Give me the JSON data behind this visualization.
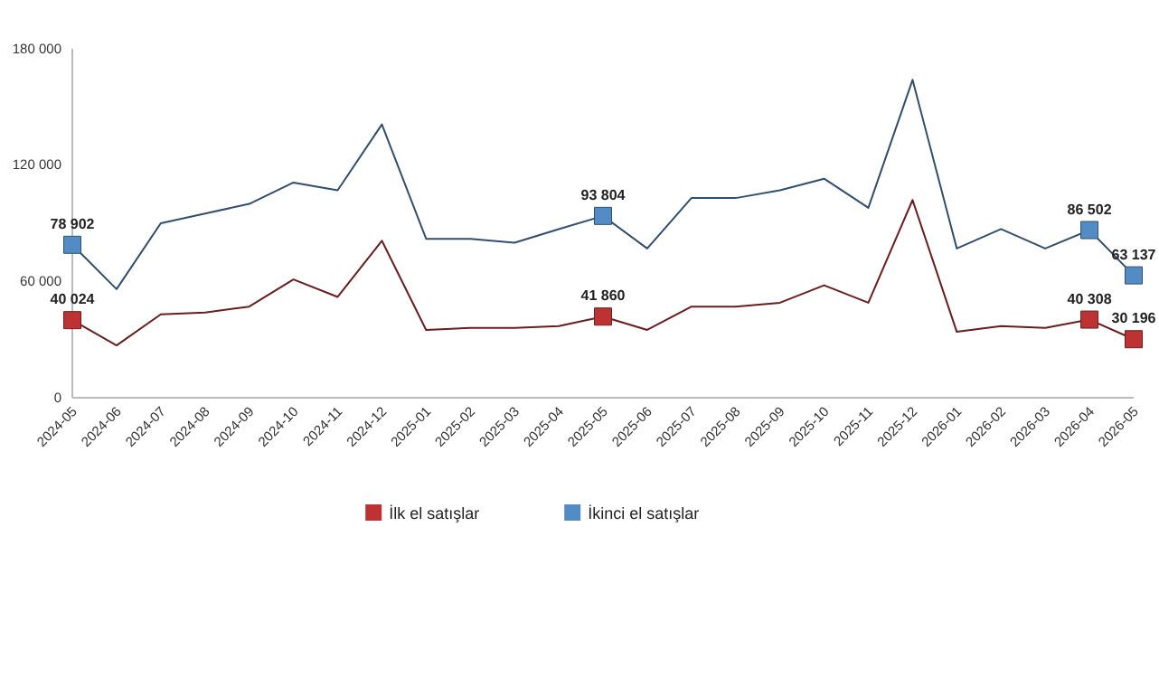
{
  "chart_data": {
    "type": "line",
    "categories": [
      "2024-05",
      "2024-06",
      "2024-07",
      "2024-08",
      "2024-09",
      "2024-10",
      "2024-11",
      "2024-12",
      "2025-01",
      "2025-02",
      "2025-03",
      "2025-04",
      "2025-05",
      "2025-06",
      "2025-07",
      "2025-08",
      "2025-09",
      "2025-10",
      "2025-11",
      "2025-12",
      "2026-01",
      "2026-02",
      "2026-03",
      "2026-04",
      "2026-05"
    ],
    "series": [
      {
        "name": "İlk el satışlar",
        "color": "#6b1d1d",
        "values": [
          40024,
          27000,
          43000,
          44000,
          47000,
          61000,
          52000,
          81000,
          35000,
          36000,
          36000,
          37000,
          41860,
          35000,
          47000,
          47000,
          49000,
          58000,
          49000,
          102000,
          34000,
          37000,
          36000,
          40308,
          30196
        ],
        "value_labels": [
          "40 024",
          null,
          null,
          null,
          null,
          null,
          null,
          null,
          null,
          null,
          null,
          null,
          "41 860",
          null,
          null,
          null,
          null,
          null,
          null,
          null,
          null,
          null,
          null,
          "40 308",
          "30 196"
        ]
      },
      {
        "name": "İkinci el satışlar",
        "color": "#2f4f6f",
        "values": [
          78902,
          56000,
          90000,
          95000,
          100000,
          111000,
          107000,
          141000,
          82000,
          82000,
          80000,
          87000,
          93804,
          77000,
          103000,
          103000,
          107000,
          113000,
          98000,
          164000,
          77000,
          87000,
          77000,
          86502,
          63137
        ],
        "value_labels": [
          "78 902",
          null,
          null,
          null,
          null,
          null,
          null,
          null,
          null,
          null,
          null,
          null,
          "93 804",
          null,
          null,
          null,
          null,
          null,
          null,
          null,
          null,
          null,
          null,
          "86 502",
          "63 137"
        ]
      }
    ],
    "ylim": [
      0,
      180000
    ],
    "yticks": [
      0,
      {
        "value": 60000,
        "label": "60 000"
      },
      {
        "value": 120000,
        "label": "120 000"
      },
      {
        "value": 180000,
        "label": "180 000"
      }
    ],
    "legend": "bottom"
  }
}
